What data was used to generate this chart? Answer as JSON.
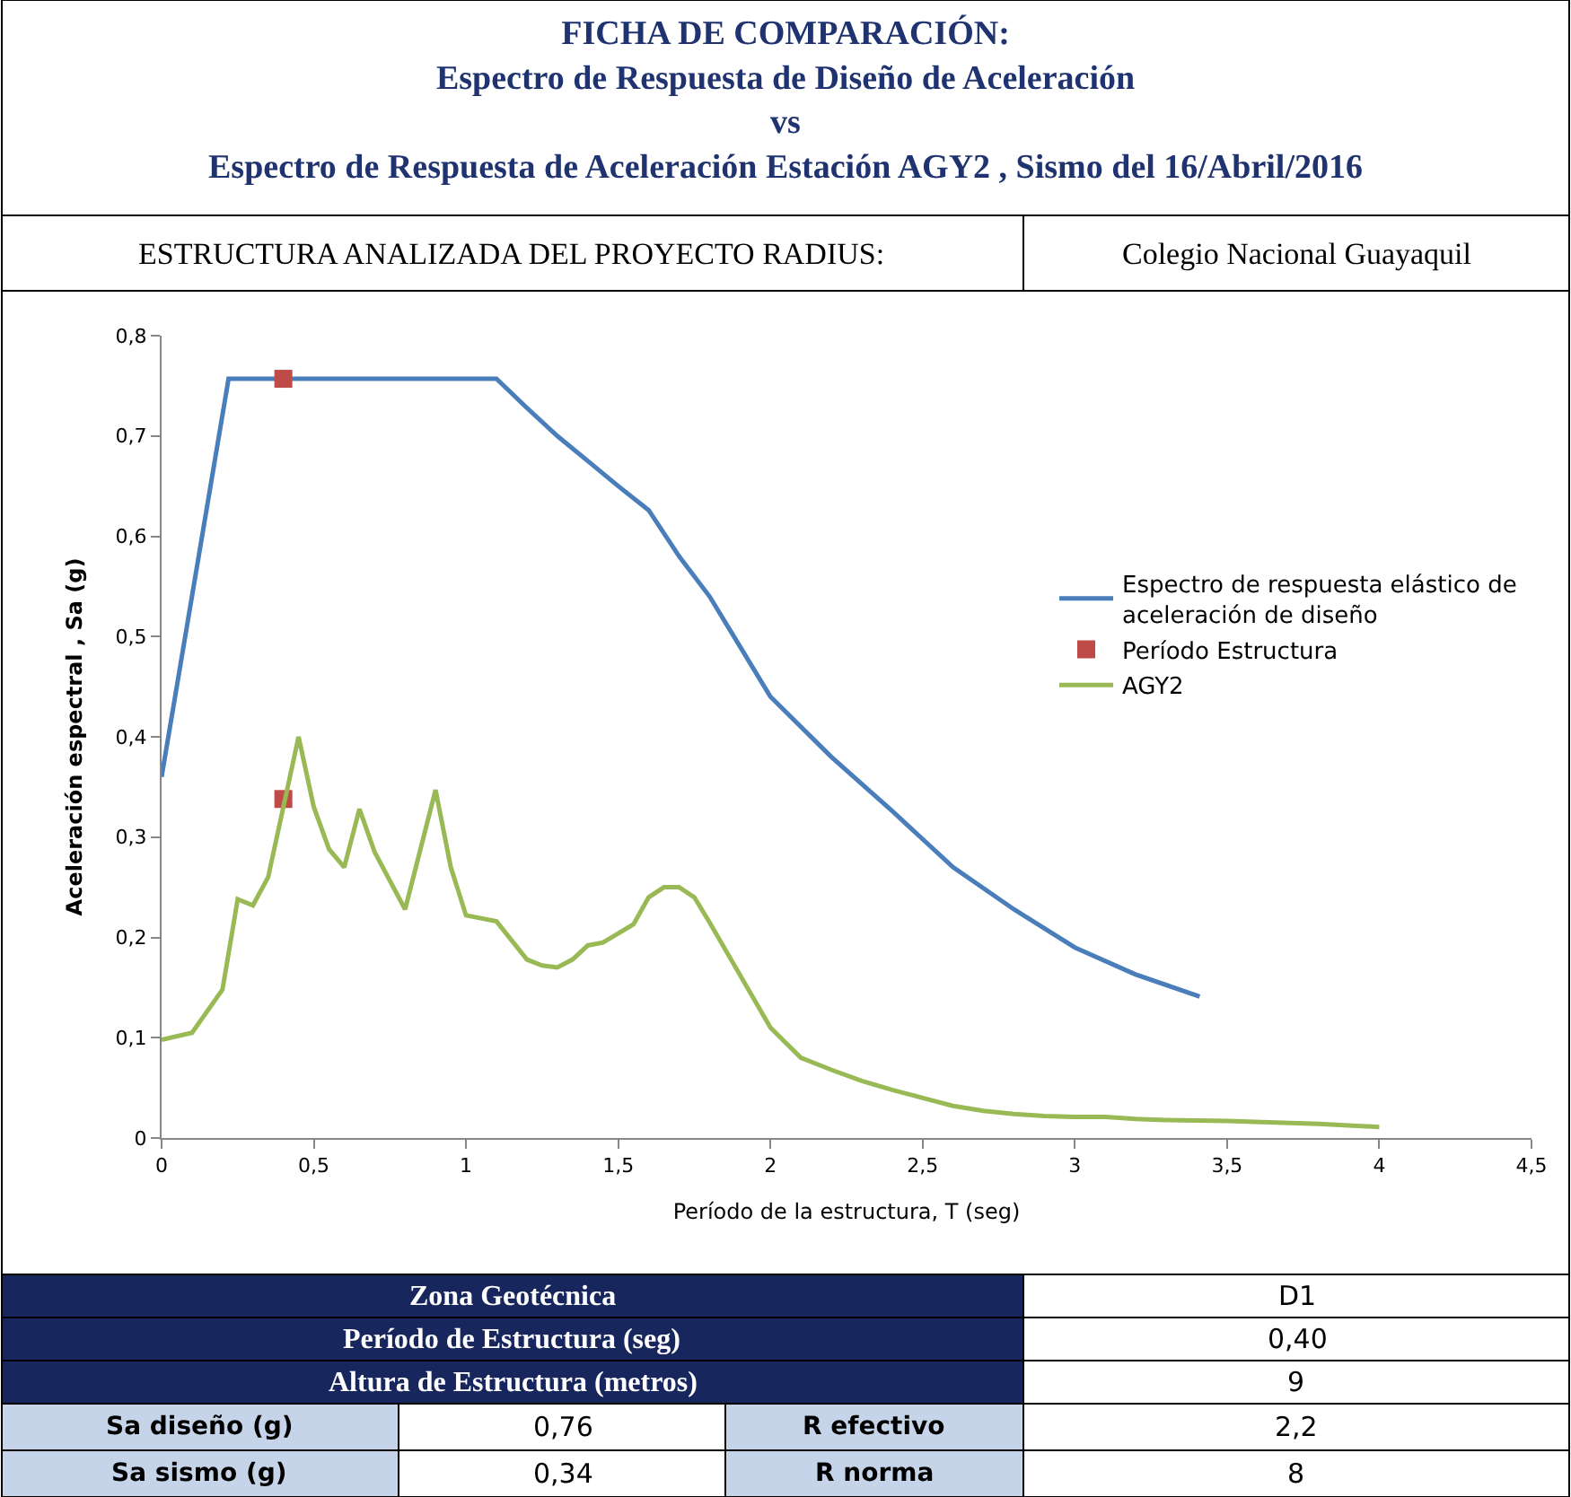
{
  "chart_data": {
    "type": "line",
    "title": "FICHA DE COMPARACIÓN:\nEspectro de Respuesta de Diseño de Aceleración\nvs\nEspectro de Respuesta de Aceleración Estación AGY2 , Sismo del 16/Abril/2016",
    "xlabel": "Período de la estructura, T (seg)",
    "ylabel": "Aceleración espectral , Sa (g)",
    "xlim": [
      0,
      4.5
    ],
    "xticks": [
      0,
      {
        "value": 0.5,
        "label": "0,5"
      },
      1,
      {
        "value": 1.5,
        "label": "1,5"
      },
      2,
      {
        "value": 2.5,
        "label": "2,5"
      },
      3,
      {
        "value": 3.5,
        "label": "3,5"
      },
      4,
      {
        "value": 4.5,
        "label": "4,5"
      }
    ],
    "ylim": [
      0,
      0.8
    ],
    "yticks": [
      0,
      {
        "value": 0.1,
        "label": "0,1"
      },
      {
        "value": 0.2,
        "label": "0,2"
      },
      {
        "value": 0.3,
        "label": "0,3"
      },
      {
        "value": 0.4,
        "label": "0,4"
      },
      {
        "value": 0.5,
        "label": "0,5"
      },
      {
        "value": 0.6,
        "label": "0,6"
      },
      {
        "value": 0.7,
        "label": "0,7"
      },
      {
        "value": 0.8,
        "label": "0,8"
      }
    ],
    "legend": "right",
    "series": [
      {
        "name": "Espectro de respuesta elástico de\naceleración de diseño",
        "color": "#4a7ebb",
        "x": [
          0,
          0.22,
          1.1,
          1.2,
          1.3,
          1.4,
          1.5,
          1.6,
          1.7,
          1.8,
          1.9,
          2.0,
          2.2,
          2.4,
          2.6,
          2.8,
          3.0,
          3.2,
          3.41
        ],
        "values": [
          0.36,
          0.757,
          0.757,
          0.728,
          0.7,
          0.675,
          0.65,
          0.626,
          0.58,
          0.54,
          0.49,
          0.44,
          0.38,
          0.326,
          0.27,
          0.228,
          0.19,
          0.163,
          0.141
        ]
      },
      {
        "name": "Período Estructura",
        "type": "scatter",
        "marker": "square",
        "color": "#be4b48",
        "x": [
          0.4,
          0.4
        ],
        "values": [
          0.757,
          0.338
        ]
      },
      {
        "name": "AGY2",
        "color": "#98b954",
        "x": [
          0,
          0.1,
          0.2,
          0.25,
          0.3,
          0.35,
          0.4,
          0.45,
          0.5,
          0.55,
          0.6,
          0.65,
          0.7,
          0.8,
          0.9,
          0.95,
          1.0,
          1.1,
          1.2,
          1.25,
          1.3,
          1.35,
          1.4,
          1.45,
          1.55,
          1.6,
          1.65,
          1.7,
          1.75,
          1.8,
          2.0,
          2.1,
          2.2,
          2.3,
          2.4,
          2.5,
          2.6,
          2.7,
          2.8,
          2.9,
          3.0,
          3.1,
          3.2,
          3.3,
          3.5,
          3.8,
          4.0
        ],
        "values": [
          0.098,
          0.105,
          0.148,
          0.238,
          0.232,
          0.26,
          0.33,
          0.4,
          0.33,
          0.288,
          0.27,
          0.328,
          0.285,
          0.228,
          0.347,
          0.27,
          0.222,
          0.216,
          0.178,
          0.172,
          0.17,
          0.178,
          0.192,
          0.195,
          0.213,
          0.24,
          0.25,
          0.25,
          0.24,
          0.215,
          0.11,
          0.08,
          0.068,
          0.057,
          0.048,
          0.04,
          0.032,
          0.027,
          0.024,
          0.022,
          0.021,
          0.021,
          0.019,
          0.018,
          0.017,
          0.014,
          0.011
        ]
      }
    ],
    "annotations": [
      "ESTRUCTURA ANALIZADA DEL PROYECTO RADIUS:",
      "Colegio Nacional Guayaquil",
      "Zona Geotécnica",
      "D1",
      "Período de Estructura (seg)",
      "0,40",
      "Altura de Estructura (metros)",
      "9",
      "Sa diseño (g)",
      "0,76",
      "R efectivo",
      "2,2",
      "Sa sismo (g)",
      "0,34",
      "R norma",
      "8"
    ]
  }
}
